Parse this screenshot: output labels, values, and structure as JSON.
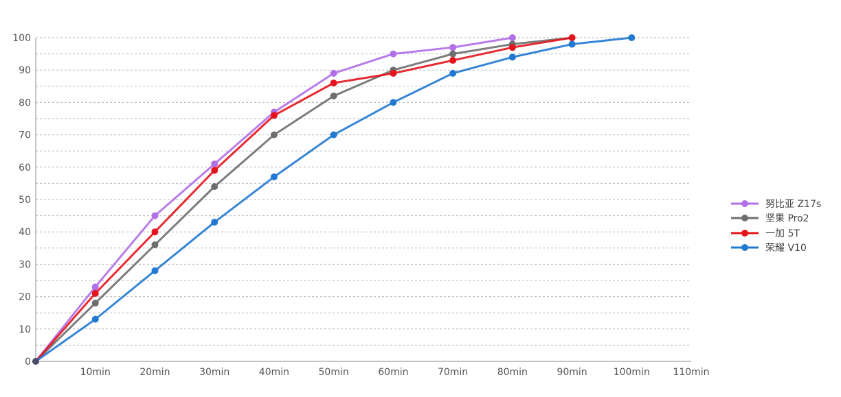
{
  "chart_data": {
    "type": "line",
    "x": [
      0,
      10,
      20,
      30,
      40,
      50,
      60,
      70,
      80,
      90,
      100
    ],
    "x_tick_labels": [
      "10min",
      "20min",
      "30min",
      "40min",
      "50min",
      "60min",
      "70min",
      "80min",
      "90min",
      "100min",
      "110min"
    ],
    "x_ticks": [
      10,
      20,
      30,
      40,
      50,
      60,
      70,
      80,
      90,
      100,
      110
    ],
    "xlim": [
      0,
      110
    ],
    "ylim": [
      0,
      100
    ],
    "y_ticks": [
      0,
      10,
      20,
      30,
      40,
      50,
      60,
      70,
      80,
      90,
      100
    ],
    "grid": "horizontal dashed",
    "legend_position": "right",
    "series": [
      {
        "name": "努比亚 Z17s",
        "color": "#b16fe8",
        "values": [
          0,
          23,
          45,
          61,
          77,
          89,
          95,
          97,
          100,
          null,
          null
        ]
      },
      {
        "name": "坚果 Pro2",
        "color": "#6e6e6e",
        "values": [
          0,
          18,
          36,
          54,
          70,
          82,
          90,
          95,
          98,
          100,
          null
        ]
      },
      {
        "name": "一加 5T",
        "color": "#e3141b",
        "values": [
          0,
          21,
          40,
          59,
          76,
          86,
          89,
          93,
          97,
          100,
          null
        ]
      },
      {
        "name": "荣耀 V10",
        "color": "#2179d1",
        "values": [
          0,
          13,
          28,
          43,
          57,
          70,
          80,
          89,
          94,
          98,
          100
        ]
      }
    ]
  }
}
